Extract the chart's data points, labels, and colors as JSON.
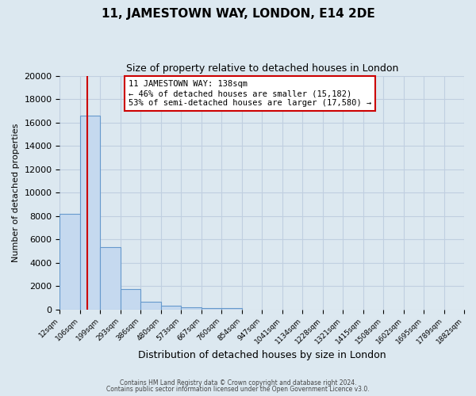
{
  "title": "11, JAMESTOWN WAY, LONDON, E14 2DE",
  "subtitle": "Size of property relative to detached houses in London",
  "xlabel": "Distribution of detached houses by size in London",
  "ylabel": "Number of detached properties",
  "bar_values": [
    8200,
    16600,
    5300,
    1750,
    680,
    290,
    155,
    100,
    110
  ],
  "x_tick_labels": [
    "12sqm",
    "106sqm",
    "199sqm",
    "293sqm",
    "386sqm",
    "480sqm",
    "573sqm",
    "667sqm",
    "760sqm",
    "854sqm",
    "947sqm",
    "1041sqm",
    "1134sqm",
    "1228sqm",
    "1321sqm",
    "1415sqm",
    "1508sqm",
    "1602sqm",
    "1695sqm",
    "1789sqm",
    "1882sqm"
  ],
  "ylim": [
    0,
    20000
  ],
  "yticks": [
    0,
    2000,
    4000,
    6000,
    8000,
    10000,
    12000,
    14000,
    16000,
    18000,
    20000
  ],
  "bar_color": "#c5d9ef",
  "bar_edge_color": "#6699cc",
  "vline_x_bin": 1.38,
  "vline_color": "#cc0000",
  "annotation_title": "11 JAMESTOWN WAY: 138sqm",
  "annotation_line1": "← 46% of detached houses are smaller (15,182)",
  "annotation_line2": "53% of semi-detached houses are larger (17,580) →",
  "annotation_box_color": "#ffffff",
  "annotation_box_edge": "#cc0000",
  "grid_color": "#c0cfe0",
  "bg_color": "#dce8f0",
  "footer1": "Contains HM Land Registry data © Crown copyright and database right 2024.",
  "footer2": "Contains public sector information licensed under the Open Government Licence v3.0."
}
